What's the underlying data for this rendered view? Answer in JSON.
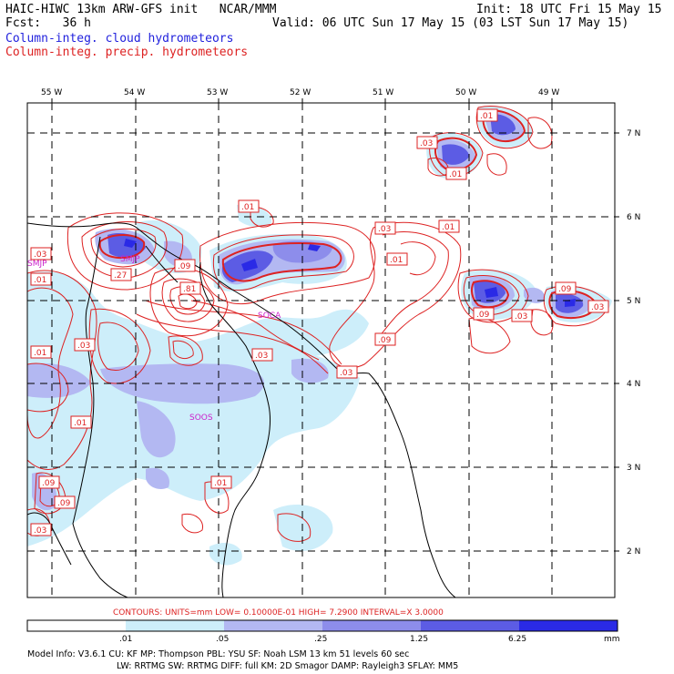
{
  "header": {
    "model": "HAIC-HIWC 13km ARW-GFS init   NCAR/MMM",
    "fcst": "Fcst:   36 h",
    "init": "Init: 18 UTC Fri 15 May 15",
    "valid": "Valid: 06 UTC Sun 17 May 15 (03 LST Sun 17 May 15)",
    "legend_cloud": "Column-integ. cloud hydrometeors",
    "legend_precip": "Column-integ. precip. hydrometeors"
  },
  "map": {
    "lon_labels": [
      "55 W",
      "54 W",
      "53 W",
      "52 W",
      "51 W",
      "50 W",
      "49 W"
    ],
    "lat_labels": [
      "7 N",
      "6 N",
      "5 N",
      "4 N",
      "3 N",
      "2 N"
    ],
    "stations": [
      "SMJP",
      "SMJP",
      "SOCA",
      "SOOS"
    ],
    "contour_labels": [
      ".01",
      ".03",
      ".01",
      ".01",
      ".03",
      ".01",
      ".03",
      ".01",
      ".27",
      ".09",
      ".01",
      ".81",
      ".09",
      ".03",
      ".09",
      ".03",
      ".03",
      ".01",
      ".09",
      ".03",
      ".03",
      ".01",
      ".09",
      ".09",
      ".01",
      ".03",
      ".01"
    ]
  },
  "contour_info": "CONTOURS:  UNITS=mm  LOW= 0.10000E-01  HIGH=  7.2900    INTERVAL=X  3.0000",
  "colorbar": {
    "ticks": [
      ".01",
      ".05",
      ".25",
      "1.25",
      "6.25"
    ],
    "unit": "mm",
    "colors": [
      "#ffffff",
      "#cdeefa",
      "#b3b8f2",
      "#8d8deb",
      "#5c5ce4",
      "#2a2ae6"
    ]
  },
  "footer": {
    "line1": "Model Info: V3.6.1    CU: KF     MP: Thompson    PBL: YSU      SF: Noah LSM    13 km   51 levels   60 sec",
    "line2": "LW: RRTMG    SW: RRTMG   DIFF: full    KM: 2D Smagor DAMP: Rayleigh3  SFLAY: MM5"
  }
}
